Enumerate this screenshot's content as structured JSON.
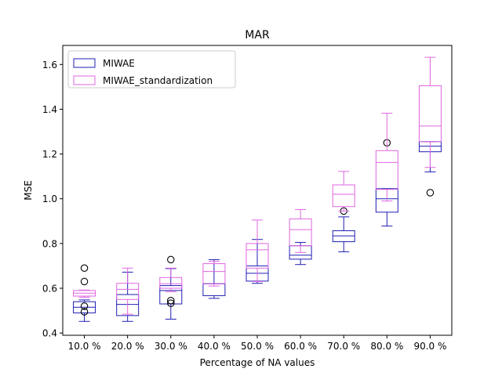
{
  "chart_data": {
    "type": "box",
    "title": "MAR",
    "xlabel": "Percentage of NA values",
    "ylabel": "MSE",
    "ylim": [
      0.39,
      1.685
    ],
    "yticks": [
      "0.4",
      "0.6",
      "0.8",
      "1.0",
      "1.2",
      "1.4",
      "1.6"
    ],
    "ytick_values": [
      0.4,
      0.6,
      0.8,
      1.0,
      1.2,
      1.4,
      1.6
    ],
    "categories": [
      "10.0 %",
      "20.0 %",
      "30.0 %",
      "40.0 %",
      "50.0 %",
      "60.0 %",
      "70.0 %",
      "80.0 %",
      "90.0 %"
    ],
    "grid": false,
    "legend_position": "top-left",
    "series": [
      {
        "name": "MIWAE",
        "color": "#1f1fb4",
        "boxes": [
          {
            "whislo": 0.452,
            "q1": 0.49,
            "med": 0.515,
            "q3": 0.54,
            "whishi": 0.548,
            "fliers": [
              0.69,
              0.63,
              0.52,
              0.495
            ]
          },
          {
            "whislo": 0.452,
            "q1": 0.478,
            "med": 0.528,
            "q3": 0.572,
            "whishi": 0.672,
            "fliers": []
          },
          {
            "whislo": 0.462,
            "q1": 0.53,
            "med": 0.59,
            "q3": 0.612,
            "whishi": 0.688,
            "fliers": [
              0.728,
              0.545,
              0.533
            ]
          },
          {
            "whislo": 0.555,
            "q1": 0.567,
            "med": 0.62,
            "q3": 0.62,
            "whishi": 0.728,
            "fliers": []
          },
          {
            "whislo": 0.622,
            "q1": 0.632,
            "med": 0.667,
            "q3": 0.7,
            "whishi": 0.818,
            "fliers": []
          },
          {
            "whislo": 0.706,
            "q1": 0.73,
            "med": 0.748,
            "q3": 0.79,
            "whishi": 0.805,
            "fliers": []
          },
          {
            "whislo": 0.763,
            "q1": 0.808,
            "med": 0.834,
            "q3": 0.857,
            "whishi": 0.919,
            "fliers": [
              0.945
            ]
          },
          {
            "whislo": 0.878,
            "q1": 0.94,
            "med": 1.0,
            "q3": 1.045,
            "whishi": 1.045,
            "fliers": [
              1.25
            ]
          },
          {
            "whislo": 1.12,
            "q1": 1.21,
            "med": 1.235,
            "q3": 1.255,
            "whishi": 1.255,
            "fliers": [
              1.027
            ]
          }
        ]
      },
      {
        "name": "MIWAE_standardization",
        "color": "#e066e0",
        "boxes": [
          {
            "whislo": 0.56,
            "q1": 0.565,
            "med": 0.578,
            "q3": 0.59,
            "whishi": 0.592,
            "fliers": []
          },
          {
            "whislo": 0.484,
            "q1": 0.55,
            "med": 0.595,
            "q3": 0.622,
            "whishi": 0.69,
            "fliers": []
          },
          {
            "whislo": 0.585,
            "q1": 0.6,
            "med": 0.62,
            "q3": 0.648,
            "whishi": 0.69,
            "fliers": []
          },
          {
            "whislo": 0.61,
            "q1": 0.62,
            "med": 0.675,
            "q3": 0.71,
            "whishi": 0.72,
            "fliers": []
          },
          {
            "whislo": 0.63,
            "q1": 0.69,
            "med": 0.772,
            "q3": 0.8,
            "whishi": 0.905,
            "fliers": []
          },
          {
            "whislo": 0.76,
            "q1": 0.79,
            "med": 0.862,
            "q3": 0.91,
            "whishi": 0.952,
            "fliers": []
          },
          {
            "whislo": 0.945,
            "q1": 0.965,
            "med": 1.02,
            "q3": 1.062,
            "whishi": 1.122,
            "fliers": []
          },
          {
            "whislo": 0.99,
            "q1": 1.042,
            "med": 1.162,
            "q3": 1.215,
            "whishi": 1.382,
            "fliers": []
          },
          {
            "whislo": 1.14,
            "q1": 1.255,
            "med": 1.325,
            "q3": 1.505,
            "whishi": 1.632,
            "fliers": []
          }
        ]
      }
    ]
  }
}
